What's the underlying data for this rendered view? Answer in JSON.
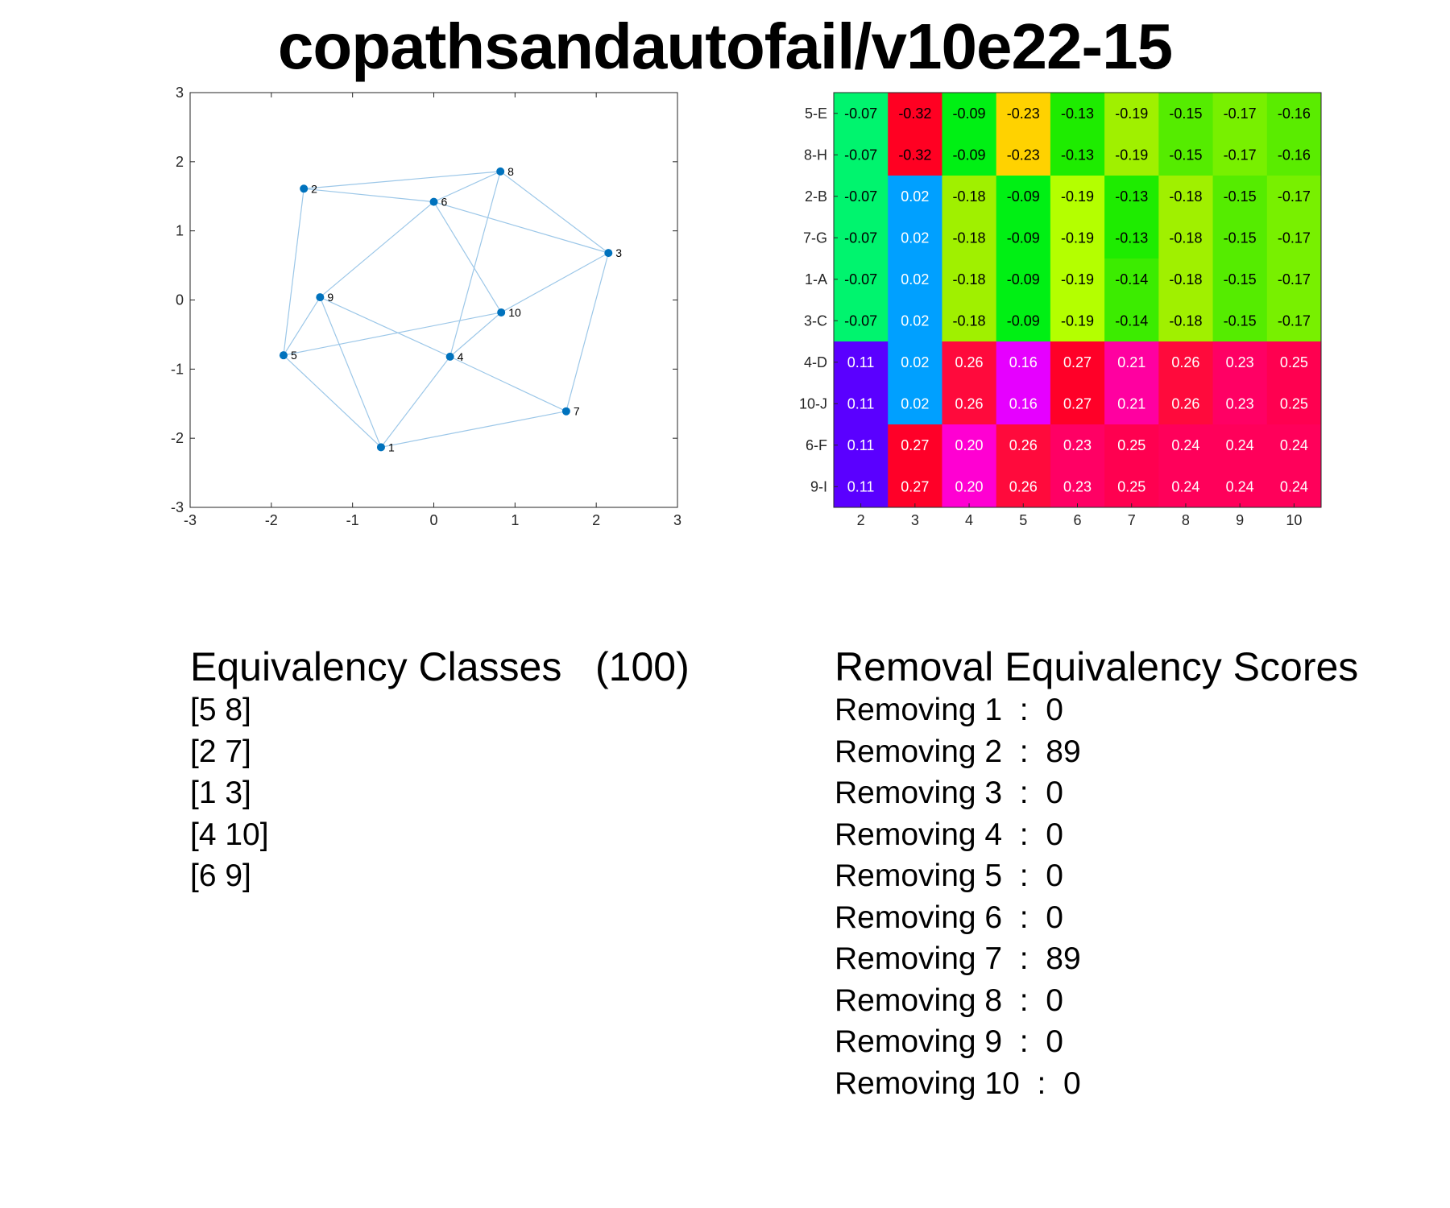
{
  "title": "copathsandautofail/v10e22-15",
  "chart_data": [
    {
      "type": "scatter",
      "subtype": "network-graph",
      "xlim": [
        -3,
        3
      ],
      "ylim": [
        -3,
        3
      ],
      "xticks": [
        "-3",
        "-2",
        "-1",
        "0",
        "1",
        "2",
        "3"
      ],
      "yticks": [
        "-3",
        "-2",
        "-1",
        "0",
        "1",
        "2",
        "3"
      ],
      "grid": false,
      "node_color": "#0072BD",
      "edge_color": "#9CC7E8",
      "nodes": [
        {
          "label": "1",
          "x": -0.65,
          "y": -2.13
        },
        {
          "label": "2",
          "x": -1.6,
          "y": 1.61
        },
        {
          "label": "3",
          "x": 2.15,
          "y": 0.68
        },
        {
          "label": "4",
          "x": 0.2,
          "y": -0.82
        },
        {
          "label": "5",
          "x": -1.85,
          "y": -0.8
        },
        {
          "label": "6",
          "x": 0.0,
          "y": 1.42
        },
        {
          "label": "7",
          "x": 1.63,
          "y": -1.61
        },
        {
          "label": "8",
          "x": 0.82,
          "y": 1.86
        },
        {
          "label": "9",
          "x": -1.4,
          "y": 0.04
        },
        {
          "label": "10",
          "x": 0.83,
          "y": -0.18
        }
      ],
      "edges": [
        [
          "2",
          "8"
        ],
        [
          "2",
          "6"
        ],
        [
          "2",
          "5"
        ],
        [
          "6",
          "8"
        ],
        [
          "6",
          "3"
        ],
        [
          "6",
          "9"
        ],
        [
          "6",
          "10"
        ],
        [
          "8",
          "4"
        ],
        [
          "8",
          "3"
        ],
        [
          "3",
          "10"
        ],
        [
          "3",
          "7"
        ],
        [
          "9",
          "5"
        ],
        [
          "9",
          "4"
        ],
        [
          "9",
          "1"
        ],
        [
          "5",
          "10"
        ],
        [
          "10",
          "4"
        ],
        [
          "4",
          "7"
        ],
        [
          "4",
          "1"
        ],
        [
          "1",
          "7"
        ],
        [
          "5",
          "1"
        ]
      ]
    },
    {
      "type": "heatmap",
      "rows": [
        "5-E",
        "8-H",
        "2-B",
        "7-G",
        "1-A",
        "3-C",
        "4-D",
        "10-J",
        "6-F",
        "9-I"
      ],
      "columns": [
        "2",
        "3",
        "4",
        "5",
        "6",
        "7",
        "8",
        "9",
        "10"
      ],
      "values": [
        [
          -0.07,
          -0.32,
          -0.09,
          -0.23,
          -0.13,
          -0.19,
          -0.15,
          -0.17,
          -0.16
        ],
        [
          -0.07,
          -0.32,
          -0.09,
          -0.23,
          -0.13,
          -0.19,
          -0.15,
          -0.17,
          -0.16
        ],
        [
          -0.07,
          0.02,
          -0.18,
          -0.09,
          -0.19,
          -0.13,
          -0.18,
          -0.15,
          -0.17
        ],
        [
          -0.07,
          0.02,
          -0.18,
          -0.09,
          -0.19,
          -0.13,
          -0.18,
          -0.15,
          -0.17
        ],
        [
          -0.07,
          0.02,
          -0.18,
          -0.09,
          -0.19,
          -0.14,
          -0.18,
          -0.15,
          -0.17
        ],
        [
          -0.07,
          0.02,
          -0.18,
          -0.09,
          -0.19,
          -0.14,
          -0.18,
          -0.15,
          -0.17
        ],
        [
          0.11,
          0.02,
          0.26,
          0.16,
          0.27,
          0.21,
          0.26,
          0.23,
          0.25
        ],
        [
          0.11,
          0.02,
          0.26,
          0.16,
          0.27,
          0.21,
          0.26,
          0.23,
          0.25
        ],
        [
          0.11,
          0.27,
          0.2,
          0.26,
          0.23,
          0.25,
          0.24,
          0.24,
          0.24
        ],
        [
          0.11,
          0.27,
          0.2,
          0.26,
          0.23,
          0.25,
          0.24,
          0.24,
          0.24
        ]
      ],
      "cell_colors": [
        [
          "#00F46E",
          "#FF0022",
          "#00F014",
          "#FFD200",
          "#1EEC00",
          "#A0F000",
          "#55EC00",
          "#78F000",
          "#5AEC00"
        ],
        [
          "#00F46E",
          "#FF0022",
          "#00F014",
          "#FFD200",
          "#1EEC00",
          "#A0F000",
          "#55EC00",
          "#78F000",
          "#5AEC00"
        ],
        [
          "#00F46E",
          "#00A0FF",
          "#A0F000",
          "#00F014",
          "#B4FF00",
          "#1EEC00",
          "#A0F000",
          "#55EC00",
          "#78F000"
        ],
        [
          "#00F46E",
          "#00A0FF",
          "#A0F000",
          "#00F014",
          "#B4FF00",
          "#1EEC00",
          "#A0F000",
          "#55EC00",
          "#78F000"
        ],
        [
          "#00F46E",
          "#00A0FF",
          "#A0F000",
          "#00F014",
          "#B4FF00",
          "#3CEC00",
          "#A0F000",
          "#55EC00",
          "#78F000"
        ],
        [
          "#00F46E",
          "#00A0FF",
          "#A0F000",
          "#00F014",
          "#B4FF00",
          "#3CEC00",
          "#A0F000",
          "#55EC00",
          "#78F000"
        ],
        [
          "#5A00FF",
          "#00A0FF",
          "#FF0A3C",
          "#E600FF",
          "#FF0028",
          "#FF00A0",
          "#FF0A3C",
          "#FF0064",
          "#FF0050"
        ],
        [
          "#5A00FF",
          "#00A0FF",
          "#FF0A3C",
          "#E600FF",
          "#FF0028",
          "#FF00A0",
          "#FF0A3C",
          "#FF0064",
          "#FF0050"
        ],
        [
          "#5A00FF",
          "#FF0028",
          "#FF00D2",
          "#FF0A3C",
          "#FF0064",
          "#FF0050",
          "#FF005A",
          "#FF005A",
          "#FF005A"
        ],
        [
          "#5A00FF",
          "#FF0028",
          "#FF00D2",
          "#FF0A3C",
          "#FF0064",
          "#FF0050",
          "#FF005A",
          "#FF005A",
          "#FF005A"
        ]
      ]
    }
  ],
  "classes": {
    "heading": "Equivalency Classes   (100)",
    "lines": [
      "[5 8]",
      "[2 7]",
      "[1 3]",
      "[4 10]",
      "[6 9]"
    ]
  },
  "scores": {
    "heading": "Removal Equivalency Scores",
    "lines": [
      "Removing 1  :  0",
      "Removing 2  :  89",
      "Removing 3  :  0",
      "Removing 4  :  0",
      "Removing 5  :  0",
      "Removing 6  :  0",
      "Removing 7  :  89",
      "Removing 8  :  0",
      "Removing 9  :  0",
      "Removing 10  :  0"
    ]
  }
}
